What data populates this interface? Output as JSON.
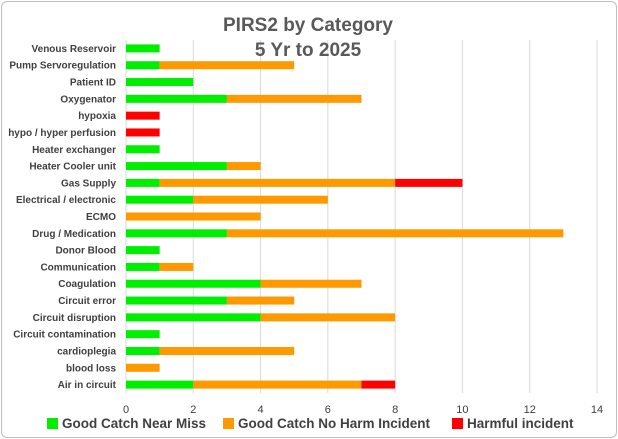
{
  "chart_data": {
    "type": "bar",
    "orientation": "horizontal",
    "stacked": true,
    "title": "PIRS2 by Category",
    "subtitle": "5 Yr to 2025",
    "xlim": [
      0,
      14
    ],
    "x_ticks": [
      "0",
      "2",
      "4",
      "6",
      "8",
      "10",
      "12",
      "14"
    ],
    "grid": true,
    "legend_position": "bottom",
    "categories": [
      "Venous Reservoir",
      "Pump Servoregulation",
      "Patient ID",
      "Oxygenator",
      "hypoxia",
      "hypo / hyper perfusion",
      "Heater exchanger",
      "Heater Cooler unit",
      "Gas Supply",
      "Electrical / electronic",
      "ECMO",
      "Drug / Medication",
      "Donor Blood",
      "Communication",
      "Coagulation",
      "Circuit error",
      "Circuit disruption",
      "Circuit contamination",
      "cardioplegia",
      "blood loss",
      "Air in circuit"
    ],
    "series": [
      {
        "name": "Good Catch Near Miss",
        "color": "#00ee00",
        "values": [
          1,
          1,
          2,
          3,
          0,
          0,
          1,
          3,
          1,
          2,
          0,
          3,
          1,
          1,
          4,
          3,
          4,
          1,
          1,
          0,
          2
        ]
      },
      {
        "name": "Good Catch No Harm Incident",
        "color": "#ff9900",
        "values": [
          0,
          4,
          0,
          4,
          0,
          0,
          0,
          1,
          7,
          4,
          4,
          10,
          0,
          1,
          3,
          2,
          4,
          0,
          4,
          1,
          5
        ]
      },
      {
        "name": "Harmful incident",
        "color": "#ff0000",
        "values": [
          0,
          0,
          0,
          0,
          1,
          1,
          0,
          0,
          2,
          0,
          0,
          0,
          0,
          0,
          0,
          0,
          0,
          0,
          0,
          0,
          1
        ]
      }
    ]
  }
}
